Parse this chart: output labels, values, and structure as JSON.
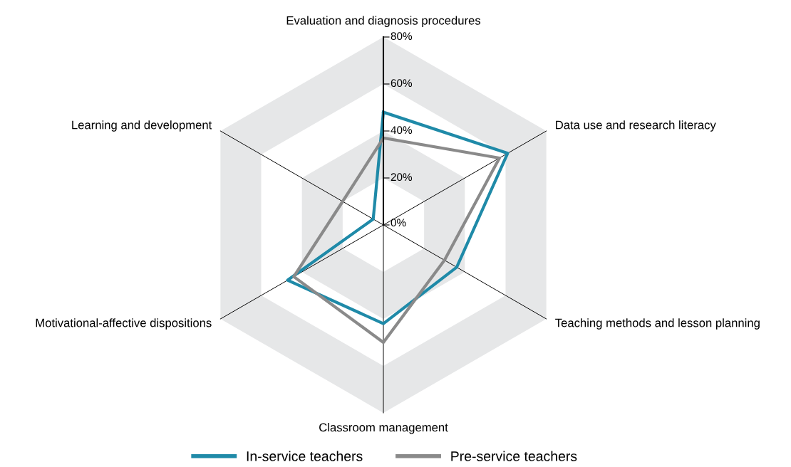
{
  "chart_data": {
    "type": "radar",
    "categories": [
      "Evaluation and diagnosis procedures",
      "Data use and research literacy",
      "Teaching methods and lesson planning",
      "Classroom management",
      "Motivational-affective dispositions",
      "Learning and development"
    ],
    "series": [
      {
        "name": "In-service teachers",
        "color": "#1f8aa8",
        "values": [
          48,
          61,
          36,
          42,
          47,
          5
        ]
      },
      {
        "name": "Pre-service teachers",
        "color": "#8a8a8a",
        "values": [
          37,
          57,
          30,
          50,
          44,
          20
        ]
      }
    ],
    "ylim": [
      0,
      80
    ],
    "yticks": [
      {
        "value": 0,
        "label": "0%"
      },
      {
        "value": 20,
        "label": "20%"
      },
      {
        "value": 40,
        "label": "40%"
      },
      {
        "value": 60,
        "label": "60%"
      },
      {
        "value": 80,
        "label": "80%"
      }
    ],
    "legend": "bottom",
    "marker": "none",
    "line_style": "solid"
  }
}
